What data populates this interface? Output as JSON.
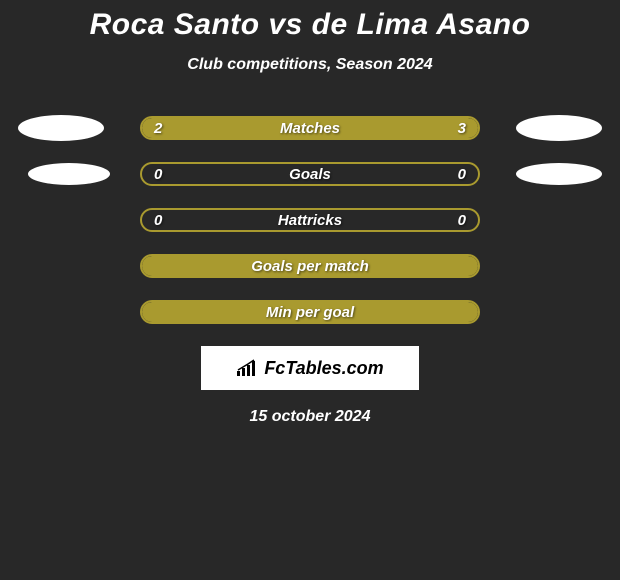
{
  "title": "Roca Santo vs de Lima Asano",
  "subtitle": "Club competitions, Season 2024",
  "date": "15 october 2024",
  "branding": {
    "text": "FcTables.com"
  },
  "colors": {
    "background": "#282828",
    "bar_border": "#a99a2f",
    "bar_fill": "#a99a2f",
    "bubble": "#ffffff",
    "text": "#ffffff"
  },
  "stats": [
    {
      "label": "Matches",
      "left_value": "2",
      "right_value": "3",
      "left_pct": 40,
      "right_pct": 60,
      "show_bubbles": true,
      "bubble_size": "large"
    },
    {
      "label": "Goals",
      "left_value": "0",
      "right_value": "0",
      "left_pct": 0,
      "right_pct": 0,
      "show_bubbles": true,
      "bubble_size": "small"
    },
    {
      "label": "Hattricks",
      "left_value": "0",
      "right_value": "0",
      "left_pct": 0,
      "right_pct": 0,
      "show_bubbles": false
    },
    {
      "label": "Goals per match",
      "left_value": "",
      "right_value": "",
      "full_fill": true,
      "show_bubbles": false
    },
    {
      "label": "Min per goal",
      "left_value": "",
      "right_value": "",
      "full_fill": true,
      "show_bubbles": false
    }
  ]
}
